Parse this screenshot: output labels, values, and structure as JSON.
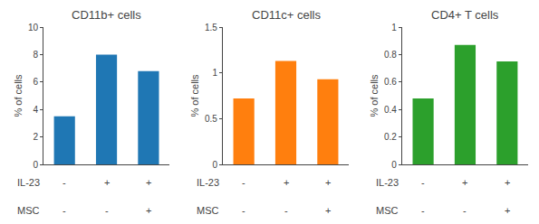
{
  "chart_data": [
    {
      "type": "bar",
      "title": "CD11b+ cells",
      "ylabel": "% of cells",
      "values": [
        3.5,
        8.0,
        6.8
      ],
      "ylim": [
        0,
        10
      ],
      "yticks": [
        0,
        2,
        4,
        6,
        8,
        10
      ],
      "grid": false,
      "tick_labels": "y",
      "annotations": [
        {
          "text": "IL-23",
          "labels": [
            "-",
            "+",
            "+"
          ]
        },
        {
          "text": "MSC",
          "labels": [
            "-",
            "-",
            "+"
          ]
        }
      ]
    },
    {
      "type": "bar",
      "title": "CD11c+ cells",
      "ylabel": "% of cells",
      "values": [
        0.72,
        1.13,
        0.93
      ],
      "ylim": [
        0,
        1.5
      ],
      "yticks": [
        0,
        0.5,
        1,
        1.5
      ],
      "grid": false,
      "tick_labels": "y",
      "annotations": [
        {
          "text": "IL-23",
          "labels": [
            "-",
            "+",
            "+"
          ]
        },
        {
          "text": "MSC",
          "labels": [
            "-",
            "-",
            "+"
          ]
        }
      ]
    },
    {
      "type": "bar",
      "title": "CD4+ T cells",
      "ylabel": "% of cells",
      "values": [
        0.48,
        0.87,
        0.75
      ],
      "ylim": [
        0,
        1
      ],
      "yticks": [
        0,
        0.2,
        0.4,
        0.6,
        0.8,
        1
      ],
      "grid": false,
      "tick_labels": "y",
      "annotations": [
        {
          "text": "IL-23",
          "labels": [
            "-",
            "+",
            "+"
          ]
        },
        {
          "text": "MSC",
          "labels": [
            "-",
            "-",
            "+"
          ]
        }
      ]
    }
  ]
}
